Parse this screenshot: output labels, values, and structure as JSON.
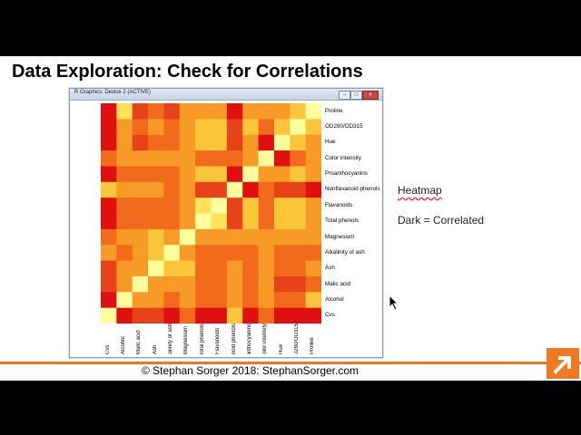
{
  "slide": {
    "title": "Data Exploration: Check for Correlations",
    "footer": "© Stephan Sorger 2018: StephanSorger.com",
    "notes": {
      "heatmap": "Heatmap",
      "dark_correlated": "Dark = Correlated"
    }
  },
  "window": {
    "title": "R Graphics: Device 2 (ACTIVE)",
    "controls": {
      "minimize": "–",
      "maximize": "□",
      "close": "×"
    }
  },
  "colors": {
    "footer_accent": "#f0731e",
    "heat_levels": [
      "#fffe9e",
      "#ffe45a",
      "#fcc53a",
      "#f79a26",
      "#f26a1c",
      "#e8421b",
      "#e01010"
    ]
  },
  "chart_data": {
    "type": "heatmap",
    "row_labels": [
      "Proline",
      "OD280/OD315",
      "Hue",
      "Color intensity",
      "Proanthocyanins",
      "Nonflavanoid phenols",
      "Flavanoids",
      "Total phenols",
      "Magnesium",
      "Alkalinity of ash",
      "Ash",
      "Malic acid",
      "Alcohol",
      "Cvs"
    ],
    "col_labels": [
      "Cvs",
      "Alcohol",
      "Malic acid",
      "Ash",
      "Alkalinity of ash",
      "Magnesium",
      "Total phenols",
      "Flavanoids",
      "Nonflavanoid phenols",
      "Proanthocyanins",
      "Color intensity",
      "Hue",
      "OD280/OD315",
      "Proline"
    ],
    "values": [
      [
        6,
        1,
        5,
        4,
        5,
        3,
        3,
        3,
        6,
        3,
        3,
        3,
        2,
        0
      ],
      [
        6,
        3,
        4,
        3,
        4,
        3,
        2,
        2,
        5,
        2,
        4,
        2,
        0,
        2
      ],
      [
        6,
        3,
        5,
        4,
        4,
        3,
        2,
        2,
        5,
        3,
        6,
        0,
        2,
        3
      ],
      [
        4,
        3,
        3,
        3,
        3,
        3,
        4,
        4,
        4,
        3,
        0,
        6,
        4,
        3
      ],
      [
        6,
        4,
        4,
        4,
        4,
        3,
        2,
        2,
        6,
        0,
        3,
        3,
        2,
        3
      ],
      [
        2,
        3,
        3,
        3,
        4,
        3,
        5,
        5,
        0,
        6,
        4,
        5,
        5,
        6
      ],
      [
        6,
        4,
        4,
        4,
        4,
        3,
        1,
        0,
        5,
        2,
        4,
        2,
        2,
        3
      ],
      [
        6,
        4,
        4,
        4,
        4,
        3,
        0,
        1,
        5,
        2,
        4,
        2,
        2,
        3
      ],
      [
        4,
        3,
        3,
        2,
        3,
        0,
        3,
        3,
        3,
        3,
        3,
        3,
        3,
        3
      ],
      [
        3,
        4,
        3,
        2,
        0,
        3,
        4,
        4,
        4,
        4,
        3,
        4,
        4,
        4
      ],
      [
        5,
        3,
        3,
        0,
        2,
        2,
        4,
        4,
        3,
        4,
        3,
        4,
        4,
        3
      ],
      [
        5,
        3,
        0,
        3,
        3,
        3,
        4,
        4,
        3,
        4,
        3,
        5,
        5,
        4
      ],
      [
        6,
        0,
        3,
        3,
        4,
        3,
        4,
        4,
        3,
        4,
        3,
        4,
        4,
        2
      ],
      [
        0,
        6,
        5,
        5,
        6,
        4,
        6,
        6,
        2,
        6,
        4,
        6,
        6,
        6
      ]
    ]
  }
}
